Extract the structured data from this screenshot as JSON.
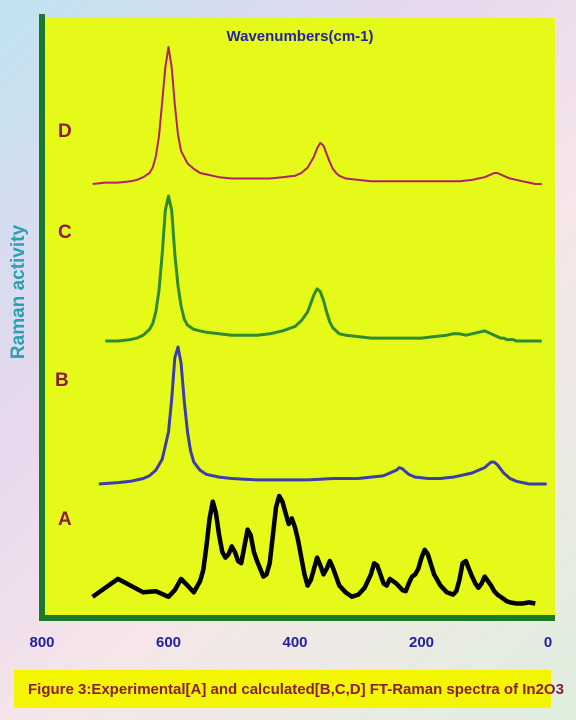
{
  "chart_data": {
    "type": "line",
    "title": "Wavenumbers(cm-1)",
    "ylabel": "Raman activity",
    "xlabel": "",
    "x_ticks": [
      800,
      600,
      400,
      200,
      0
    ],
    "xlim": [
      800,
      0
    ],
    "x_reversed": true,
    "grid": false,
    "series": [
      {
        "name": "A",
        "color": "#000000",
        "x": [
          720,
          700,
          680,
          660,
          640,
          620,
          600,
          590,
          580,
          570,
          560,
          550,
          545,
          540,
          535,
          530,
          525,
          520,
          515,
          510,
          505,
          500,
          495,
          490,
          485,
          480,
          475,
          470,
          465,
          460,
          455,
          450,
          445,
          440,
          435,
          430,
          425,
          420,
          415,
          410,
          405,
          400,
          395,
          390,
          385,
          380,
          375,
          370,
          365,
          360,
          355,
          350,
          345,
          340,
          335,
          330,
          320,
          310,
          300,
          290,
          280,
          275,
          270,
          265,
          260,
          255,
          250,
          240,
          230,
          225,
          220,
          215,
          210,
          205,
          200,
          195,
          190,
          180,
          170,
          160,
          150,
          145,
          140,
          135,
          130,
          125,
          120,
          115,
          110,
          105,
          100,
          95,
          90,
          85,
          80,
          75,
          70,
          65,
          60,
          50,
          40,
          30,
          20
        ],
        "values": [
          0.1,
          0.18,
          0.26,
          0.2,
          0.14,
          0.15,
          0.1,
          0.16,
          0.26,
          0.2,
          0.14,
          0.24,
          0.34,
          0.55,
          0.8,
          0.95,
          0.85,
          0.65,
          0.5,
          0.45,
          0.48,
          0.55,
          0.5,
          0.42,
          0.4,
          0.55,
          0.7,
          0.65,
          0.5,
          0.42,
          0.35,
          0.28,
          0.3,
          0.4,
          0.65,
          0.9,
          1.0,
          0.95,
          0.85,
          0.75,
          0.8,
          0.72,
          0.6,
          0.45,
          0.3,
          0.2,
          0.25,
          0.35,
          0.45,
          0.38,
          0.3,
          0.35,
          0.42,
          0.36,
          0.28,
          0.2,
          0.14,
          0.1,
          0.12,
          0.18,
          0.3,
          0.4,
          0.38,
          0.3,
          0.22,
          0.2,
          0.26,
          0.22,
          0.16,
          0.15,
          0.22,
          0.28,
          0.3,
          0.35,
          0.45,
          0.52,
          0.48,
          0.3,
          0.2,
          0.14,
          0.12,
          0.15,
          0.25,
          0.4,
          0.42,
          0.35,
          0.28,
          0.22,
          0.18,
          0.22,
          0.28,
          0.24,
          0.2,
          0.15,
          0.12,
          0.1,
          0.08,
          0.06,
          0.05,
          0.04,
          0.04,
          0.05,
          0.04
        ]
      },
      {
        "name": "B",
        "color": "#3d3daa",
        "x": [
          710,
          680,
          660,
          640,
          630,
          620,
          610,
          600,
          595,
          590,
          585,
          580,
          575,
          570,
          565,
          560,
          550,
          540,
          520,
          500,
          480,
          460,
          440,
          420,
          400,
          380,
          360,
          340,
          320,
          300,
          280,
          260,
          250,
          240,
          235,
          230,
          225,
          220,
          210,
          200,
          190,
          180,
          170,
          160,
          150,
          140,
          130,
          120,
          110,
          100,
          95,
          90,
          85,
          80,
          75,
          70,
          65,
          60,
          55,
          50,
          40,
          30,
          20,
          10,
          2
        ],
        "values": [
          0.0,
          0.01,
          0.02,
          0.04,
          0.06,
          0.1,
          0.18,
          0.38,
          0.62,
          0.92,
          1.0,
          0.88,
          0.6,
          0.38,
          0.24,
          0.16,
          0.1,
          0.07,
          0.05,
          0.04,
          0.035,
          0.03,
          0.03,
          0.03,
          0.03,
          0.03,
          0.035,
          0.04,
          0.04,
          0.04,
          0.05,
          0.06,
          0.08,
          0.1,
          0.12,
          0.11,
          0.09,
          0.07,
          0.05,
          0.045,
          0.04,
          0.04,
          0.04,
          0.045,
          0.05,
          0.06,
          0.07,
          0.08,
          0.1,
          0.12,
          0.14,
          0.16,
          0.16,
          0.14,
          0.11,
          0.08,
          0.06,
          0.04,
          0.03,
          0.02,
          0.01,
          0.0,
          0.0,
          0.0,
          0.0
        ]
      },
      {
        "name": "C",
        "color": "#2e8b2e",
        "x": [
          700,
          680,
          660,
          650,
          640,
          630,
          625,
          620,
          615,
          610,
          605,
          600,
          595,
          590,
          585,
          580,
          575,
          570,
          560,
          540,
          520,
          500,
          480,
          460,
          440,
          420,
          400,
          390,
          380,
          375,
          370,
          365,
          360,
          355,
          350,
          345,
          340,
          330,
          320,
          300,
          280,
          260,
          240,
          220,
          200,
          180,
          160,
          150,
          140,
          130,
          120,
          110,
          100,
          90,
          85,
          80,
          75,
          70,
          65,
          60,
          55,
          50,
          40,
          30,
          20,
          10
        ],
        "values": [
          0.0,
          0.0,
          0.01,
          0.02,
          0.04,
          0.08,
          0.12,
          0.2,
          0.35,
          0.6,
          0.9,
          1.0,
          0.9,
          0.6,
          0.38,
          0.24,
          0.15,
          0.11,
          0.08,
          0.06,
          0.05,
          0.04,
          0.04,
          0.04,
          0.05,
          0.07,
          0.1,
          0.14,
          0.2,
          0.26,
          0.32,
          0.36,
          0.34,
          0.28,
          0.2,
          0.13,
          0.09,
          0.05,
          0.04,
          0.03,
          0.02,
          0.02,
          0.02,
          0.02,
          0.02,
          0.03,
          0.04,
          0.05,
          0.05,
          0.04,
          0.05,
          0.06,
          0.07,
          0.05,
          0.04,
          0.03,
          0.02,
          0.02,
          0.01,
          0.01,
          0.01,
          0.0,
          0.0,
          0.0,
          0.0,
          0.0
        ]
      },
      {
        "name": "D",
        "color": "#b02266",
        "x": [
          720,
          700,
          680,
          660,
          650,
          640,
          630,
          625,
          620,
          615,
          610,
          605,
          600,
          595,
          590,
          585,
          580,
          570,
          560,
          550,
          540,
          520,
          500,
          480,
          460,
          440,
          420,
          400,
          390,
          380,
          370,
          365,
          360,
          355,
          350,
          345,
          340,
          335,
          330,
          320,
          300,
          280,
          260,
          240,
          220,
          200,
          180,
          160,
          140,
          120,
          110,
          100,
          95,
          90,
          85,
          80,
          75,
          70,
          65,
          60,
          50,
          40,
          30,
          20,
          10
        ],
        "values": [
          0.0,
          0.01,
          0.01,
          0.02,
          0.03,
          0.05,
          0.08,
          0.12,
          0.2,
          0.35,
          0.6,
          0.85,
          1.0,
          0.85,
          0.58,
          0.36,
          0.24,
          0.15,
          0.11,
          0.08,
          0.07,
          0.05,
          0.04,
          0.04,
          0.04,
          0.04,
          0.05,
          0.06,
          0.08,
          0.12,
          0.2,
          0.26,
          0.3,
          0.28,
          0.22,
          0.16,
          0.11,
          0.08,
          0.06,
          0.04,
          0.03,
          0.02,
          0.02,
          0.02,
          0.02,
          0.02,
          0.02,
          0.02,
          0.02,
          0.03,
          0.04,
          0.05,
          0.06,
          0.07,
          0.08,
          0.08,
          0.07,
          0.06,
          0.05,
          0.04,
          0.03,
          0.02,
          0.01,
          0.0,
          0.0
        ]
      }
    ]
  },
  "caption": "Figure 3:Experimental[A] and calculated[B,C,D] FT-Raman spectra of In2O3",
  "colors": {
    "plot_background": "#e6fa19",
    "axis": "#1a7a2a",
    "tick_label": "#2323a0",
    "title": "#2323a0",
    "ylabel": "#2ba0b0",
    "series_label": "#8a1d3a",
    "caption_background": "#f4f500",
    "caption_text": "#8a1d3a"
  }
}
